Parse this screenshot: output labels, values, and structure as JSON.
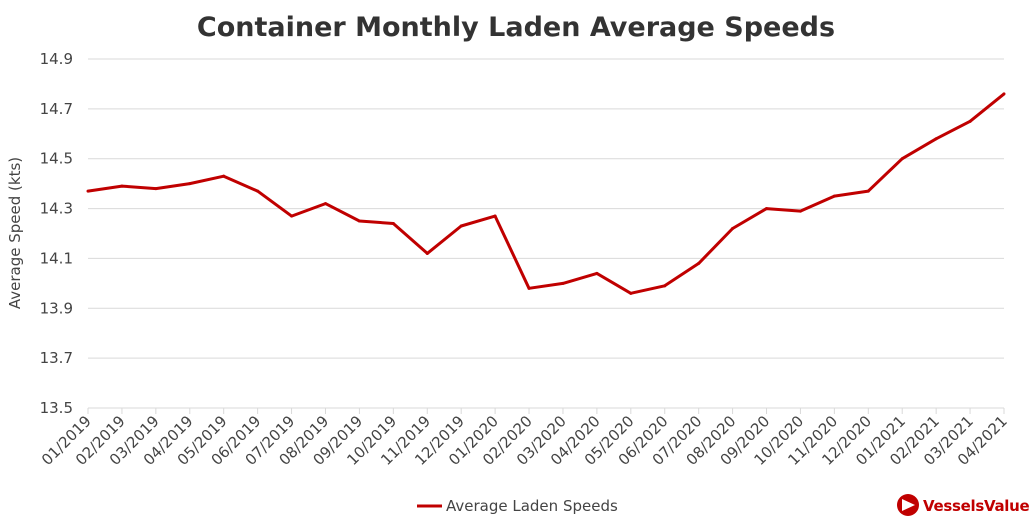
{
  "chart_data": {
    "type": "line",
    "title": "Container Monthly Laden Average Speeds",
    "xlabel": "",
    "ylabel": "Average Speed (kts)",
    "ylim": [
      13.5,
      14.9
    ],
    "yticks": [
      "13.5",
      "13.7",
      "13.9",
      "14.1",
      "14.3",
      "14.5",
      "14.7",
      "14.9"
    ],
    "grid": true,
    "legend_position": "bottom",
    "categories": [
      "01/2019",
      "02/2019",
      "03/2019",
      "04/2019",
      "05/2019",
      "06/2019",
      "07/2019",
      "08/2019",
      "09/2019",
      "10/2019",
      "11/2019",
      "12/2019",
      "01/2020",
      "02/2020",
      "03/2020",
      "04/2020",
      "05/2020",
      "06/2020",
      "07/2020",
      "08/2020",
      "09/2020",
      "10/2020",
      "11/2020",
      "12/2020",
      "01/2021",
      "02/2021",
      "03/2021",
      "04/2021"
    ],
    "series": [
      {
        "name": "Average Laden Speeds",
        "color": "#c00000",
        "values": [
          14.37,
          14.39,
          14.38,
          14.4,
          14.43,
          14.37,
          14.27,
          14.32,
          14.25,
          14.24,
          14.12,
          14.23,
          14.27,
          13.98,
          14.0,
          14.04,
          13.96,
          13.99,
          14.08,
          14.22,
          14.3,
          14.29,
          14.35,
          14.37,
          14.5,
          14.58,
          14.65,
          14.76
        ]
      }
    ]
  },
  "brand": {
    "name": "VesselsValue",
    "logo_icon": "vesselsvalue-logo-icon",
    "color": "#c00000"
  }
}
